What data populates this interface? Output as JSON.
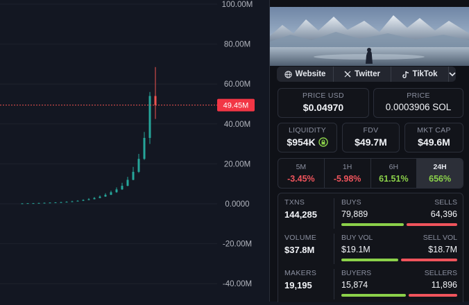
{
  "chart": {
    "y_axis_labels": [
      "100.00M",
      "80.00M",
      "60.00M",
      "40.00M",
      "20.00M",
      "0.0000",
      "-20.00M",
      "-40.00M"
    ],
    "current_price_label": "49.45M",
    "colors": {
      "up": "#26a69a",
      "down": "#ef5350",
      "background": "#131722"
    }
  },
  "chart_data": {
    "type": "candlestick",
    "title": "",
    "ylim": [
      -45,
      100
    ],
    "y_unit": "M",
    "y_ticks": [
      100,
      80,
      60,
      40,
      20,
      0,
      -20,
      -40
    ],
    "current_value": 49.45,
    "series": [
      {
        "name": "market-cap",
        "values": [
          [
            0.2,
            0.2,
            0.3,
            0.2
          ],
          [
            0.2,
            0.3,
            0.3,
            0.2
          ],
          [
            0.3,
            0.3,
            0.4,
            0.3
          ],
          [
            0.3,
            0.4,
            0.5,
            0.3
          ],
          [
            0.4,
            0.5,
            0.6,
            0.4
          ],
          [
            0.5,
            0.6,
            0.7,
            0.5
          ],
          [
            0.6,
            0.7,
            0.8,
            0.6
          ],
          [
            0.7,
            0.8,
            1.0,
            0.7
          ],
          [
            0.8,
            1.0,
            1.2,
            0.8
          ],
          [
            1.0,
            1.2,
            1.5,
            1.0
          ],
          [
            1.2,
            1.5,
            1.8,
            1.2
          ],
          [
            1.5,
            1.9,
            2.2,
            1.4
          ],
          [
            1.9,
            2.3,
            2.8,
            1.8
          ],
          [
            2.3,
            2.9,
            3.4,
            2.2
          ],
          [
            2.9,
            3.6,
            4.2,
            2.8
          ],
          [
            3.6,
            4.5,
            5.3,
            3.5
          ],
          [
            4.5,
            5.8,
            6.6,
            4.4
          ],
          [
            5.8,
            7.2,
            8.2,
            5.5
          ],
          [
            7.2,
            9.0,
            10.5,
            7.0
          ],
          [
            9.0,
            12.0,
            13.5,
            8.8
          ],
          [
            12.0,
            16.0,
            18.5,
            11.8
          ],
          [
            16.0,
            22.5,
            25.0,
            15.5
          ],
          [
            22.5,
            33.0,
            36.0,
            22.0
          ],
          [
            33.0,
            54.0,
            56.0,
            30.0
          ],
          [
            54.0,
            49.45,
            68.5,
            42.5
          ]
        ]
      }
    ]
  },
  "panel": {
    "social": [
      {
        "icon": "globe-icon",
        "label": "Website"
      },
      {
        "icon": "x-logo-icon",
        "label": "Twitter"
      },
      {
        "icon": "tiktok-icon",
        "label": "TikTok"
      }
    ],
    "price_usd": {
      "label": "PRICE USD",
      "value": "$0.04970"
    },
    "price_sol": {
      "label": "PRICE",
      "value": "0.0003906 SOL"
    },
    "liquidity": {
      "label": "LIQUIDITY",
      "value": "$954K"
    },
    "fdv": {
      "label": "FDV",
      "value": "$49.7M"
    },
    "mkt_cap": {
      "label": "MKT CAP",
      "value": "$49.6M"
    },
    "tabs": [
      {
        "label": "5M",
        "value": "-3.45%",
        "trend": "neg"
      },
      {
        "label": "1H",
        "value": "-5.98%",
        "trend": "neg"
      },
      {
        "label": "6H",
        "value": "61.51%",
        "trend": "pos"
      },
      {
        "label": "24H",
        "value": "656%",
        "trend": "pos"
      }
    ],
    "active_tab": "24H",
    "stats": {
      "txns": {
        "label": "TXNS",
        "value": "144,285"
      },
      "buys": {
        "label": "BUYS",
        "value": "79,889"
      },
      "sells": {
        "label": "SELLS",
        "value": "64,396"
      },
      "volume": {
        "label": "VOLUME",
        "value": "$37.8M"
      },
      "buy_vol": {
        "label": "BUY VOL",
        "value": "$19.1M"
      },
      "sell_vol": {
        "label": "SELL VOL",
        "value": "$18.7M"
      },
      "makers": {
        "label": "MAKERS",
        "value": "19,195"
      },
      "buyers": {
        "label": "BUYERS",
        "value": "15,874"
      },
      "sellers": {
        "label": "SELLERS",
        "value": "11,896"
      }
    },
    "ratios": {
      "txns_buy": 0.554,
      "volume_buy": 0.505,
      "makers_buy": 0.572
    },
    "bar_colors": {
      "buy": "#8bd14a",
      "sell": "#f0545c"
    }
  }
}
